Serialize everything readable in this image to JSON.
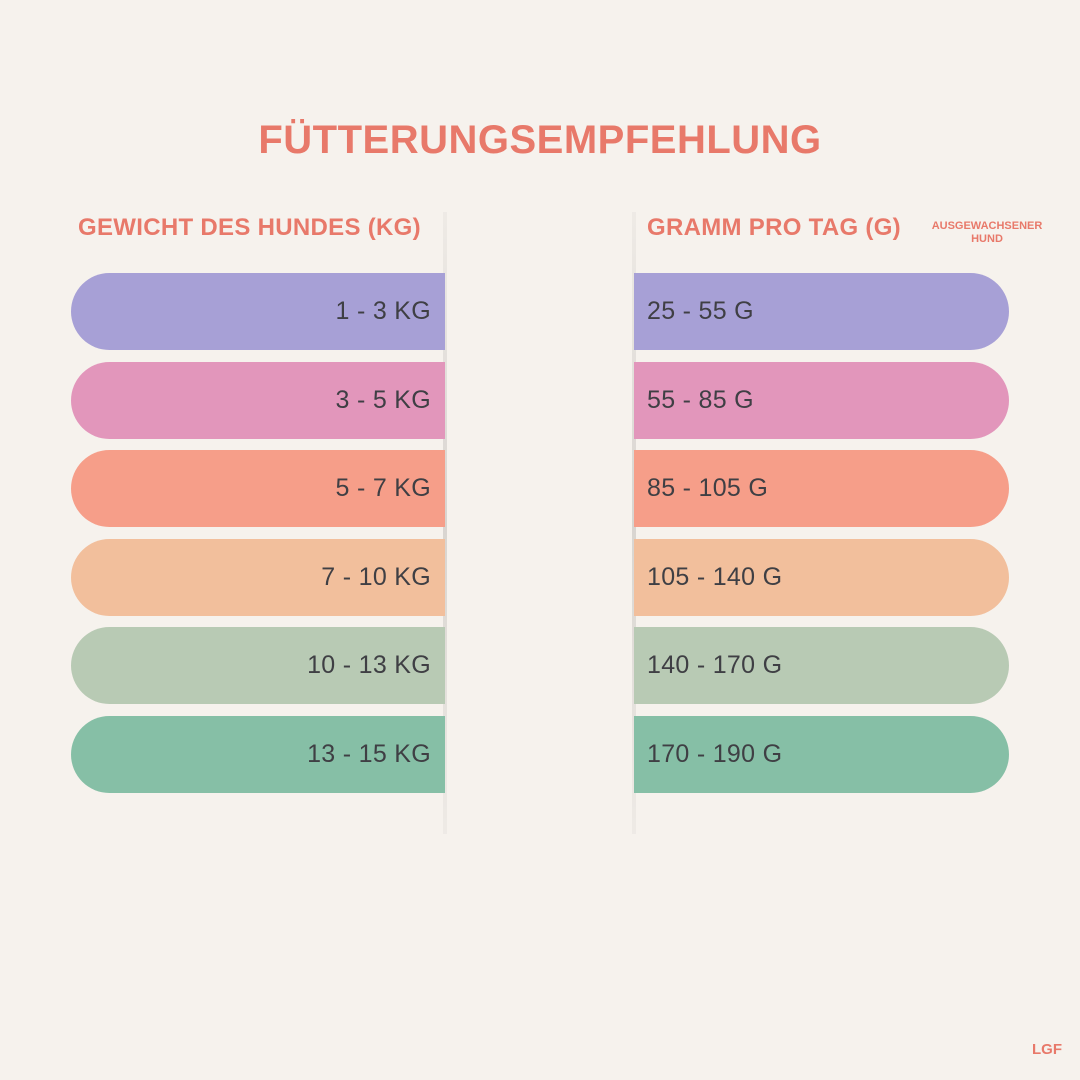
{
  "title": "FÜTTERUNGSEMPFEHLUNG",
  "columns": {
    "weight_label": "GEWICHT DES HUNDES (KG)",
    "grams_label": "GRAMM PRO TAG (G)",
    "grams_note_line1": "AUSGEWACHSENER",
    "grams_note_line2": "HUND"
  },
  "rows": [
    {
      "weight": "1 - 3 KG",
      "grams": "25 - 55 G",
      "color": "#a7a0d6"
    },
    {
      "weight": "3 - 5 KG",
      "grams": "55 - 85 G",
      "color": "#e296bb"
    },
    {
      "weight": "5 - 7 KG",
      "grams": "85 - 105 G",
      "color": "#f69e89"
    },
    {
      "weight": "7 - 10 KG",
      "grams": "105 - 140 G",
      "color": "#f2bf9c"
    },
    {
      "weight": "10 - 13 KG",
      "grams": "140 - 170 G",
      "color": "#b8cab4"
    },
    {
      "weight": "13 - 15 KG",
      "grams": "170 - 190 G",
      "color": "#86bfa6"
    }
  ],
  "brand": "LGF",
  "colors": {
    "accent": "#e8796a",
    "background": "#f6f2ed",
    "text": "#3f3f44"
  }
}
